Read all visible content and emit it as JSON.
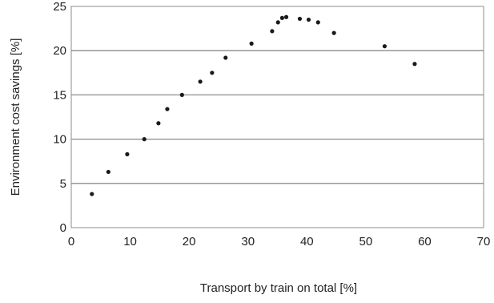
{
  "chart_data": {
    "type": "scatter",
    "xlabel": "Transport by train on total [%]",
    "ylabel": "Environment cost savings [%]",
    "xlim": [
      0,
      70
    ],
    "ylim": [
      0,
      25
    ],
    "x_ticks": [
      "0",
      "10",
      "20",
      "30",
      "40",
      "50",
      "60",
      "70"
    ],
    "y_ticks": [
      "0",
      "5",
      "10",
      "15",
      "20",
      "25"
    ],
    "grid": "horizontal",
    "marker_color": "#1a1a1a",
    "grid_color": "#8c8c8c",
    "series": [
      {
        "x": [
          3.5,
          6.3,
          9.5,
          12.4,
          14.8,
          16.3,
          18.8,
          21.9,
          23.9,
          26.2,
          30.6,
          34.1,
          35.1,
          35.8,
          36.5,
          38.8,
          40.3,
          41.9,
          44.6,
          53.2,
          58.3
        ],
        "y": [
          3.8,
          6.3,
          8.3,
          10.0,
          11.8,
          13.4,
          15.0,
          16.5,
          17.5,
          19.2,
          20.8,
          22.2,
          23.2,
          23.7,
          23.8,
          23.6,
          23.5,
          23.2,
          22.0,
          20.5,
          18.5
        ]
      }
    ]
  }
}
